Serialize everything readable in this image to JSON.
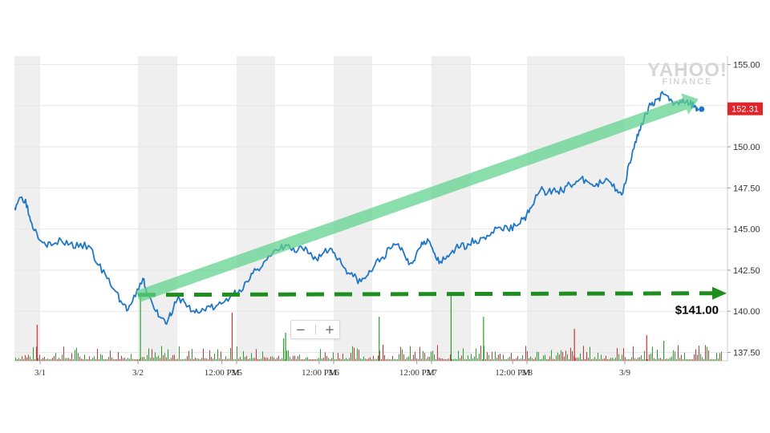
{
  "chart_data": {
    "type": "line",
    "subtype": "intraday stock price with volume bars",
    "watermark": [
      "YAHOO!",
      "FINANCE"
    ],
    "y_axis": {
      "position": "right",
      "range": [
        137.5,
        155.5
      ],
      "ticks": [
        "155.00",
        "152.50",
        "150.00",
        "147.50",
        "145.00",
        "142.50",
        "140.00",
        "137.50"
      ],
      "tick_values": [
        155,
        152.5,
        150,
        147.5,
        145,
        142.5,
        140,
        137.5
      ]
    },
    "x_axis": {
      "sessions": [
        "3/1",
        "3/2",
        "3/5",
        "3/6",
        "3/7",
        "3/8",
        "3/9"
      ],
      "labels": [
        {
          "text": "3/1",
          "pos": 0.5
        },
        {
          "text": "3/2",
          "pos": 1.5
        },
        {
          "text": "12:00 PM",
          "pos": 1.85
        },
        {
          "text": "3/5",
          "pos": 2.5
        },
        {
          "text": "12:00 PM",
          "pos": 2.85
        },
        {
          "text": "3/6",
          "pos": 3.5
        },
        {
          "text": "12:00 PM",
          "pos": 3.85
        },
        {
          "text": "3/7",
          "pos": 4.5
        },
        {
          "text": "12:00 PM",
          "pos": 4.85
        },
        {
          "text": "3/8",
          "pos": 5.5
        },
        {
          "text": "3/9",
          "pos": 6.5
        }
      ],
      "range": [
        0,
        7.2
      ]
    },
    "price_series": {
      "name": "",
      "color": "#1f76c6",
      "points": [
        [
          0.0,
          146.3
        ],
        [
          0.04,
          146.9
        ],
        [
          0.09,
          146.8
        ],
        [
          0.13,
          145.5
        ],
        [
          0.18,
          144.8
        ],
        [
          0.24,
          144.2
        ],
        [
          0.3,
          144.0
        ],
        [
          0.38,
          144.3
        ],
        [
          0.45,
          144.1
        ],
        [
          0.52,
          143.9
        ],
        [
          0.6,
          144.0
        ],
        [
          0.68,
          142.8
        ],
        [
          0.75,
          142.0
        ],
        [
          0.82,
          141.2
        ],
        [
          0.87,
          140.5
        ],
        [
          0.92,
          140.1
        ],
        [
          0.98,
          140.9
        ],
        [
          1.05,
          142.0
        ],
        [
          1.1,
          141.0
        ],
        [
          1.18,
          140.0
        ],
        [
          1.25,
          139.6
        ],
        [
          1.3,
          139.4
        ],
        [
          1.36,
          140.2
        ],
        [
          1.42,
          140.8
        ],
        [
          1.48,
          140.5
        ],
        [
          1.55,
          140.0
        ],
        [
          1.62,
          139.9
        ],
        [
          1.7,
          140.3
        ],
        [
          1.78,
          140.2
        ],
        [
          1.86,
          140.5
        ],
        [
          1.95,
          141.0
        ],
        [
          2.03,
          141.3
        ],
        [
          2.12,
          141.8
        ],
        [
          2.2,
          142.5
        ],
        [
          2.28,
          143.0
        ],
        [
          2.36,
          143.4
        ],
        [
          2.45,
          143.8
        ],
        [
          2.52,
          144.0
        ],
        [
          2.6,
          143.6
        ],
        [
          2.68,
          143.8
        ],
        [
          2.75,
          143.5
        ],
        [
          2.82,
          143.2
        ],
        [
          2.9,
          143.6
        ],
        [
          2.98,
          143.8
        ],
        [
          3.05,
          143.2
        ],
        [
          3.12,
          142.6
        ],
        [
          3.2,
          142.1
        ],
        [
          3.28,
          141.8
        ],
        [
          3.35,
          142.2
        ],
        [
          3.42,
          142.8
        ],
        [
          3.5,
          143.3
        ],
        [
          3.58,
          143.8
        ],
        [
          3.66,
          144.1
        ],
        [
          3.72,
          143.5
        ],
        [
          3.78,
          142.9
        ],
        [
          3.84,
          143.4
        ],
        [
          3.9,
          144.2
        ],
        [
          3.96,
          144.4
        ],
        [
          4.02,
          143.6
        ],
        [
          4.08,
          142.9
        ],
        [
          4.15,
          143.2
        ],
        [
          4.22,
          143.7
        ],
        [
          4.3,
          143.9
        ],
        [
          4.38,
          144.1
        ],
        [
          4.46,
          144.3
        ],
        [
          4.55,
          144.5
        ],
        [
          4.63,
          144.8
        ],
        [
          4.72,
          145.1
        ],
        [
          4.8,
          145.0
        ],
        [
          4.88,
          145.2
        ],
        [
          4.96,
          145.6
        ],
        [
          5.02,
          146.0
        ],
        [
          5.08,
          146.8
        ],
        [
          5.14,
          147.4
        ],
        [
          5.2,
          147.1
        ],
        [
          5.28,
          147.5
        ],
        [
          5.36,
          147.3
        ],
        [
          5.44,
          147.7
        ],
        [
          5.52,
          147.9
        ],
        [
          5.6,
          148.0
        ],
        [
          5.68,
          147.6
        ],
        [
          5.76,
          147.8
        ],
        [
          5.84,
          147.9
        ],
        [
          5.92,
          147.4
        ],
        [
          5.98,
          147.2
        ],
        [
          6.05,
          149.0
        ],
        [
          6.12,
          150.3
        ],
        [
          6.18,
          151.0
        ],
        [
          6.25,
          152.0
        ],
        [
          6.32,
          152.7
        ],
        [
          6.38,
          152.9
        ],
        [
          6.45,
          153.2
        ],
        [
          6.52,
          152.8
        ],
        [
          6.6,
          152.7
        ],
        [
          6.68,
          152.9
        ],
        [
          6.76,
          152.6
        ],
        [
          6.82,
          152.5
        ],
        [
          6.86,
          152.31
        ]
      ]
    },
    "last_price": {
      "value": 152.31,
      "label": "152.31",
      "color": "#e0242c"
    },
    "support_line": {
      "value": 141.0,
      "label": "$141.00",
      "color": "#1e8f1e",
      "style": "dashed"
    },
    "trend_arrow": {
      "from": [
        1.0,
        140.9
      ],
      "to": [
        6.86,
        152.9
      ],
      "color": "#5dd18b"
    },
    "shaded_sessions_color": "#efefef",
    "volume": {
      "seed": 7,
      "colors": {
        "up": "#2aa02a",
        "down": "#d63030"
      },
      "spikes": [
        {
          "x": 0.18,
          "h": 0.45,
          "dir": "down"
        },
        {
          "x": 1.02,
          "h": 0.85,
          "dir": "up"
        },
        {
          "x": 1.95,
          "h": 0.6,
          "dir": "down"
        },
        {
          "x": 2.48,
          "h": 0.28,
          "dir": "up"
        },
        {
          "x": 2.5,
          "h": 0.35,
          "dir": "up"
        },
        {
          "x": 3.46,
          "h": 0.55,
          "dir": "up"
        },
        {
          "x": 3.5,
          "h": 0.2,
          "dir": "down"
        },
        {
          "x": 4.2,
          "h": 0.85,
          "dir": "up"
        },
        {
          "x": 4.54,
          "h": 0.55,
          "dir": "up"
        },
        {
          "x": 5.48,
          "h": 0.4,
          "dir": "down"
        },
        {
          "x": 6.25,
          "h": 0.32,
          "dir": "down"
        },
        {
          "x": 6.45,
          "h": 0.25,
          "dir": "up"
        }
      ]
    }
  },
  "zoom": {
    "minus": "−",
    "plus": "+"
  }
}
